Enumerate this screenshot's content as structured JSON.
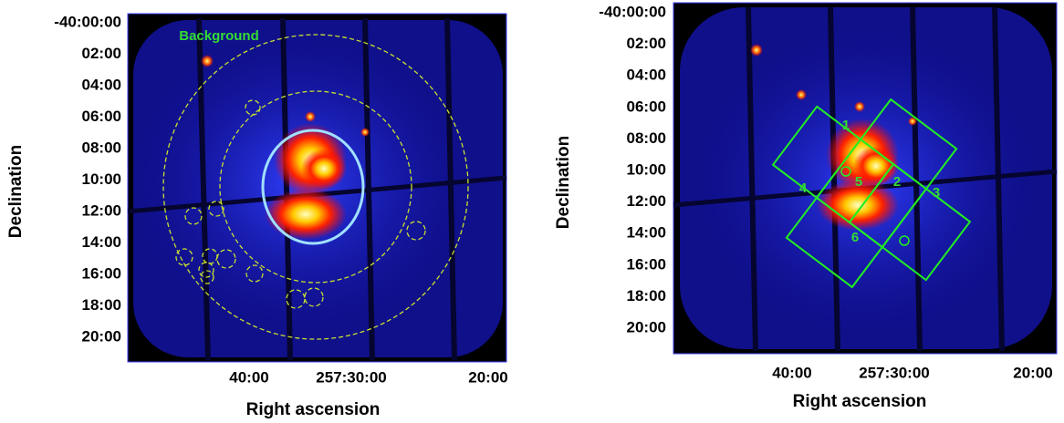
{
  "panels": [
    {
      "yticks": [
        "-40:00:00",
        "02:00",
        "04:00",
        "06:00",
        "08:00",
        "10:00",
        "12:00",
        "14:00",
        "16:00",
        "18:00",
        "20:00"
      ],
      "xticks": [
        "40:00",
        "257:30:00",
        "20:00"
      ],
      "xlabel": "Right ascension",
      "ylabel": "Declination",
      "regions": [
        "Background"
      ]
    },
    {
      "yticks": [
        "-40:00:00",
        "02:00",
        "04:00",
        "06:00",
        "08:00",
        "10:00",
        "12:00",
        "14:00",
        "16:00",
        "18:00",
        "20:00"
      ],
      "xticks": [
        "40:00",
        "257:30:00",
        "20:00"
      ],
      "xlabel": "Right ascension",
      "ylabel": "Declination",
      "regions": [
        "1",
        "2",
        "3",
        "4",
        "5",
        "6"
      ]
    }
  ]
}
